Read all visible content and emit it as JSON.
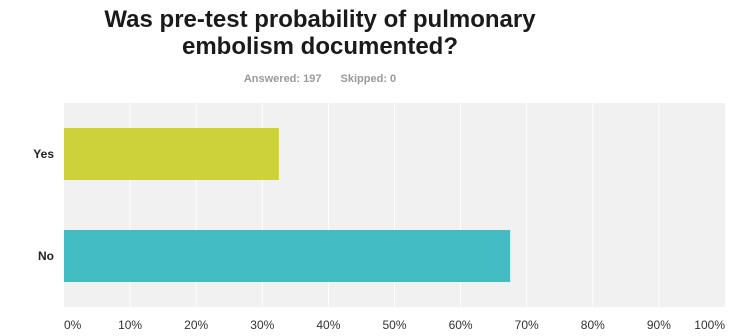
{
  "title": {
    "line1": "Was pre-test probability of pulmonary",
    "line2": "embolism documented?"
  },
  "meta": {
    "answered": "Answered: 197",
    "skipped": "Skipped: 0"
  },
  "colors": {
    "background": "#f1f1f1",
    "grid": "#ffffff",
    "yes": "#cdd13a",
    "no": "#44bcc4"
  },
  "chart_data": {
    "type": "bar",
    "orientation": "horizontal",
    "categories": [
      "Yes",
      "No"
    ],
    "values": [
      32.5,
      67.5
    ],
    "xlim": [
      0,
      100
    ],
    "ticks": [
      "0%",
      "10%",
      "20%",
      "30%",
      "40%",
      "50%",
      "60%",
      "70%",
      "80%",
      "90%",
      "100%"
    ],
    "grid": true
  }
}
